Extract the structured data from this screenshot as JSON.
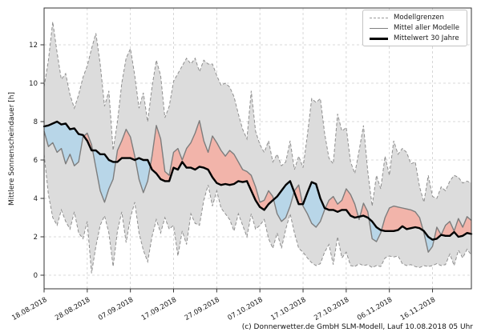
{
  "figure": {
    "y_axis_label": "Mittlere Sonnenscheindauer [h]",
    "footer_credit": "(c) Donnerwetter.de GmbH SLM-Modell, Lauf 10.08.2018 05 Uhr"
  },
  "legend": {
    "items": [
      {
        "label": "Modellgrenzen",
        "swatch": "dashed-gray"
      },
      {
        "label": "Mittel aller Modelle",
        "swatch": "solid-gray"
      },
      {
        "label": "Mittelwert 30 Jahre",
        "swatch": "thick-black"
      }
    ]
  },
  "colors": {
    "band_fill": "#dcdcdc",
    "band_edge": "#8f8f8f",
    "above_fill": "#f2b4aa",
    "below_fill": "#b8d6e8",
    "mean_line": "#7d7d7d",
    "clim_line": "#000000",
    "grid": "#cccccc",
    "spine": "#333333",
    "tick_text": "#1a1a1a"
  },
  "chart_data": {
    "type": "area",
    "title": "",
    "ylabel": "Mittlere Sonnenscheindauer [h]",
    "grid": true,
    "legend_position": "upper right",
    "ylim": [
      -0.7,
      13.8
    ],
    "y_ticks": [
      0,
      2,
      4,
      6,
      8,
      10,
      12
    ],
    "x_tick_labels": [
      "18.08.2018",
      "28.08.2018",
      "07.09.2018",
      "17.09.2018",
      "27.09.2018",
      "07.10.2018",
      "17.10.2018",
      "27.10.2018",
      "06.11.2018",
      "16.11.2018"
    ],
    "x_days_per_tick": 10,
    "x_step_days": 1,
    "series": [
      {
        "name": "Modellgrenzen (oberes Limit)",
        "values": [
          9.8,
          11.2,
          13.2,
          11.6,
          10.2,
          10.5,
          9.4,
          8.7,
          9.4,
          10.3,
          10.9,
          11.8,
          12.6,
          11.0,
          8.8,
          9.6,
          6.5,
          8.0,
          10.0,
          11.3,
          11.8,
          10.4,
          8.7,
          9.5,
          8.0,
          9.8,
          11.2,
          10.4,
          8.2,
          8.8,
          10.1,
          10.5,
          10.9,
          11.3,
          11.0,
          11.3,
          10.6,
          11.2,
          11.0,
          11.0,
          10.4,
          9.9,
          10.0,
          9.8,
          9.3,
          8.4,
          7.6,
          7.1,
          9.6,
          7.5,
          6.8,
          6.4,
          7.0,
          5.9,
          6.3,
          5.7,
          5.9,
          7.0,
          5.5,
          6.2,
          5.6,
          7.3,
          9.2,
          9.0,
          9.2,
          7.4,
          6.1,
          5.8,
          8.4,
          7.5,
          7.7,
          5.9,
          5.3,
          6.5,
          7.8,
          5.4,
          3.6,
          5.2,
          4.5,
          6.2,
          5.2,
          7.0,
          6.3,
          6.6,
          6.4,
          5.8,
          5.9,
          4.6,
          3.8,
          5.2,
          4.1,
          4.0,
          4.6,
          4.4,
          4.9,
          5.2,
          5.1,
          4.8,
          4.9,
          4.8
        ]
      },
      {
        "name": "Modellgrenzen (unteres Limit)",
        "values": [
          6.3,
          4.2,
          3.0,
          2.6,
          3.4,
          2.8,
          2.4,
          3.3,
          2.2,
          1.9,
          2.8,
          0.1,
          1.5,
          2.6,
          3.1,
          2.2,
          0.45,
          2.3,
          3.3,
          1.7,
          3.0,
          3.8,
          2.2,
          1.3,
          0.7,
          2.0,
          2.9,
          2.2,
          3.0,
          2.4,
          2.6,
          1.0,
          2.3,
          1.6,
          3.2,
          2.7,
          2.6,
          3.9,
          4.7,
          3.6,
          4.4,
          3.5,
          3.2,
          2.9,
          2.3,
          3.2,
          2.6,
          2.0,
          3.2,
          2.4,
          2.6,
          2.9,
          1.9,
          1.4,
          2.2,
          1.4,
          2.4,
          3.2,
          2.2,
          1.4,
          1.2,
          0.9,
          0.65,
          0.5,
          0.6,
          1.2,
          1.6,
          0.55,
          2.0,
          0.9,
          1.2,
          0.5,
          0.45,
          0.6,
          0.5,
          0.55,
          0.4,
          0.5,
          0.45,
          0.9,
          1.0,
          0.95,
          1.0,
          0.6,
          0.5,
          0.55,
          0.45,
          0.4,
          0.5,
          0.45,
          0.5,
          0.6,
          0.5,
          0.55,
          1.1,
          0.5,
          1.3,
          0.9,
          1.35,
          1.05
        ]
      },
      {
        "name": "Mittel aller Modelle",
        "values": [
          7.5,
          6.7,
          6.9,
          6.4,
          6.6,
          5.8,
          6.3,
          5.7,
          5.9,
          7.2,
          7.4,
          6.8,
          5.6,
          4.4,
          3.8,
          4.5,
          5.0,
          6.5,
          7.0,
          7.6,
          7.2,
          6.2,
          5.0,
          4.3,
          4.9,
          6.2,
          7.8,
          7.1,
          5.4,
          5.2,
          6.4,
          6.6,
          6.0,
          6.6,
          6.9,
          7.4,
          8.05,
          7.0,
          6.4,
          7.25,
          6.9,
          6.5,
          6.2,
          6.5,
          6.3,
          5.9,
          5.5,
          5.4,
          5.2,
          4.6,
          3.8,
          3.9,
          4.4,
          4.1,
          3.2,
          2.8,
          3.0,
          3.6,
          4.4,
          4.7,
          3.6,
          3.2,
          2.7,
          2.5,
          2.8,
          3.4,
          3.9,
          4.1,
          3.7,
          3.9,
          4.5,
          4.2,
          3.7,
          2.9,
          3.75,
          3.3,
          1.9,
          1.75,
          2.2,
          3.0,
          3.5,
          3.6,
          3.55,
          3.5,
          3.45,
          3.4,
          3.3,
          3.0,
          2.2,
          1.2,
          1.5,
          2.5,
          2.1,
          2.6,
          2.8,
          2.3,
          2.95,
          2.5,
          3.05,
          2.85
        ]
      },
      {
        "name": "Mittelwert 30 Jahre",
        "values": [
          7.75,
          7.8,
          7.9,
          8.0,
          7.85,
          7.9,
          7.6,
          7.65,
          7.35,
          7.3,
          7.0,
          6.5,
          6.5,
          6.3,
          6.3,
          6.0,
          5.9,
          5.9,
          6.1,
          6.1,
          6.1,
          6.0,
          6.1,
          6.0,
          6.0,
          5.5,
          5.3,
          5.0,
          4.9,
          4.9,
          5.6,
          5.5,
          5.9,
          5.6,
          5.6,
          5.5,
          5.65,
          5.6,
          5.5,
          5.1,
          4.8,
          4.7,
          4.75,
          4.7,
          4.75,
          4.9,
          4.85,
          4.9,
          4.4,
          3.9,
          3.55,
          3.4,
          3.7,
          3.9,
          4.1,
          4.4,
          4.7,
          4.9,
          4.3,
          3.7,
          3.7,
          4.3,
          4.85,
          4.75,
          4.0,
          3.5,
          3.4,
          3.4,
          3.3,
          3.4,
          3.4,
          3.1,
          3.0,
          3.05,
          3.1,
          3.0,
          2.8,
          2.5,
          2.35,
          2.3,
          2.3,
          2.3,
          2.35,
          2.55,
          2.4,
          2.45,
          2.5,
          2.45,
          2.3,
          2.0,
          1.85,
          1.9,
          2.1,
          2.05,
          2.05,
          2.25,
          2.0,
          2.05,
          2.2,
          2.15
        ]
      }
    ]
  }
}
